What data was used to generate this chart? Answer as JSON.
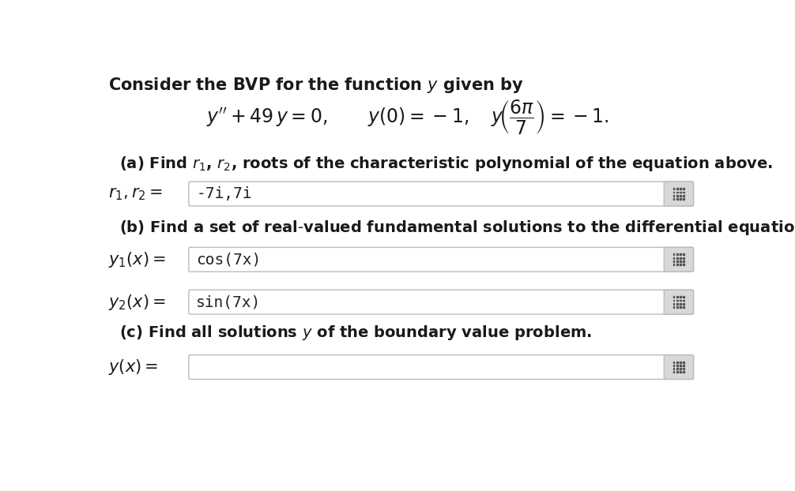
{
  "background_color": "#ffffff",
  "figsize": [
    10.06,
    6.22
  ],
  "dpi": 100,
  "title_text": "Consider the BVP for the function $y$ given by",
  "part_a_label_plain": "(a) Find ",
  "part_a_label_math": "$r_1$, $r_2$",
  "part_a_label_rest": ", roots of the characteristic polynomial of the equation above.",
  "part_a_answer": "-7i,7i",
  "part_b1_answer": "cos(7x)",
  "part_b2_answer": "sin(7x)",
  "part_c_answer": "",
  "box_edge_color": "#bbbbbb",
  "box_fill_color": "#ffffff",
  "icon_bg_color": "#d8d8d8",
  "icon_dot_color": "#555555",
  "text_color": "#1a1a1a",
  "answer_color": "#222222",
  "title_fontsize": 15,
  "label_fontsize": 14,
  "field_label_fontsize": 15,
  "answer_fontsize": 14,
  "eq_fontsize": 17
}
